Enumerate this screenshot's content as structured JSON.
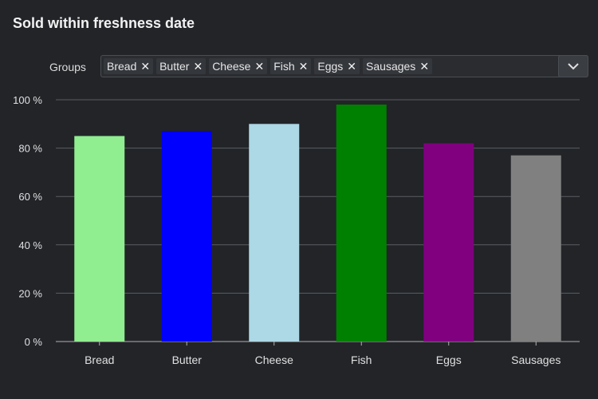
{
  "title": "Sold within freshness date",
  "filter": {
    "label": "Groups",
    "chips": [
      "Bread",
      "Butter",
      "Cheese",
      "Fish",
      "Eggs",
      "Sausages"
    ],
    "remove_glyph": "✕",
    "dropdown_icon": "chevron-down-icon"
  },
  "chart_data": {
    "type": "bar",
    "title": "",
    "xlabel": "",
    "ylabel": "",
    "categories": [
      "Bread",
      "Butter",
      "Cheese",
      "Fish",
      "Eggs",
      "Sausages"
    ],
    "values": [
      85,
      87,
      90,
      98,
      82,
      77
    ],
    "colors": [
      "#90ee90",
      "#0000ff",
      "#add8e6",
      "#008000",
      "#800080",
      "#808080"
    ],
    "ylim": [
      0,
      100
    ],
    "yticks": [
      0,
      20,
      40,
      60,
      80,
      100
    ],
    "ytick_suffix": " %",
    "grid": true,
    "legend": "none"
  },
  "colors": {
    "background": "#222428",
    "grid": "#5a5d62",
    "axis": "#b0b0b0"
  }
}
